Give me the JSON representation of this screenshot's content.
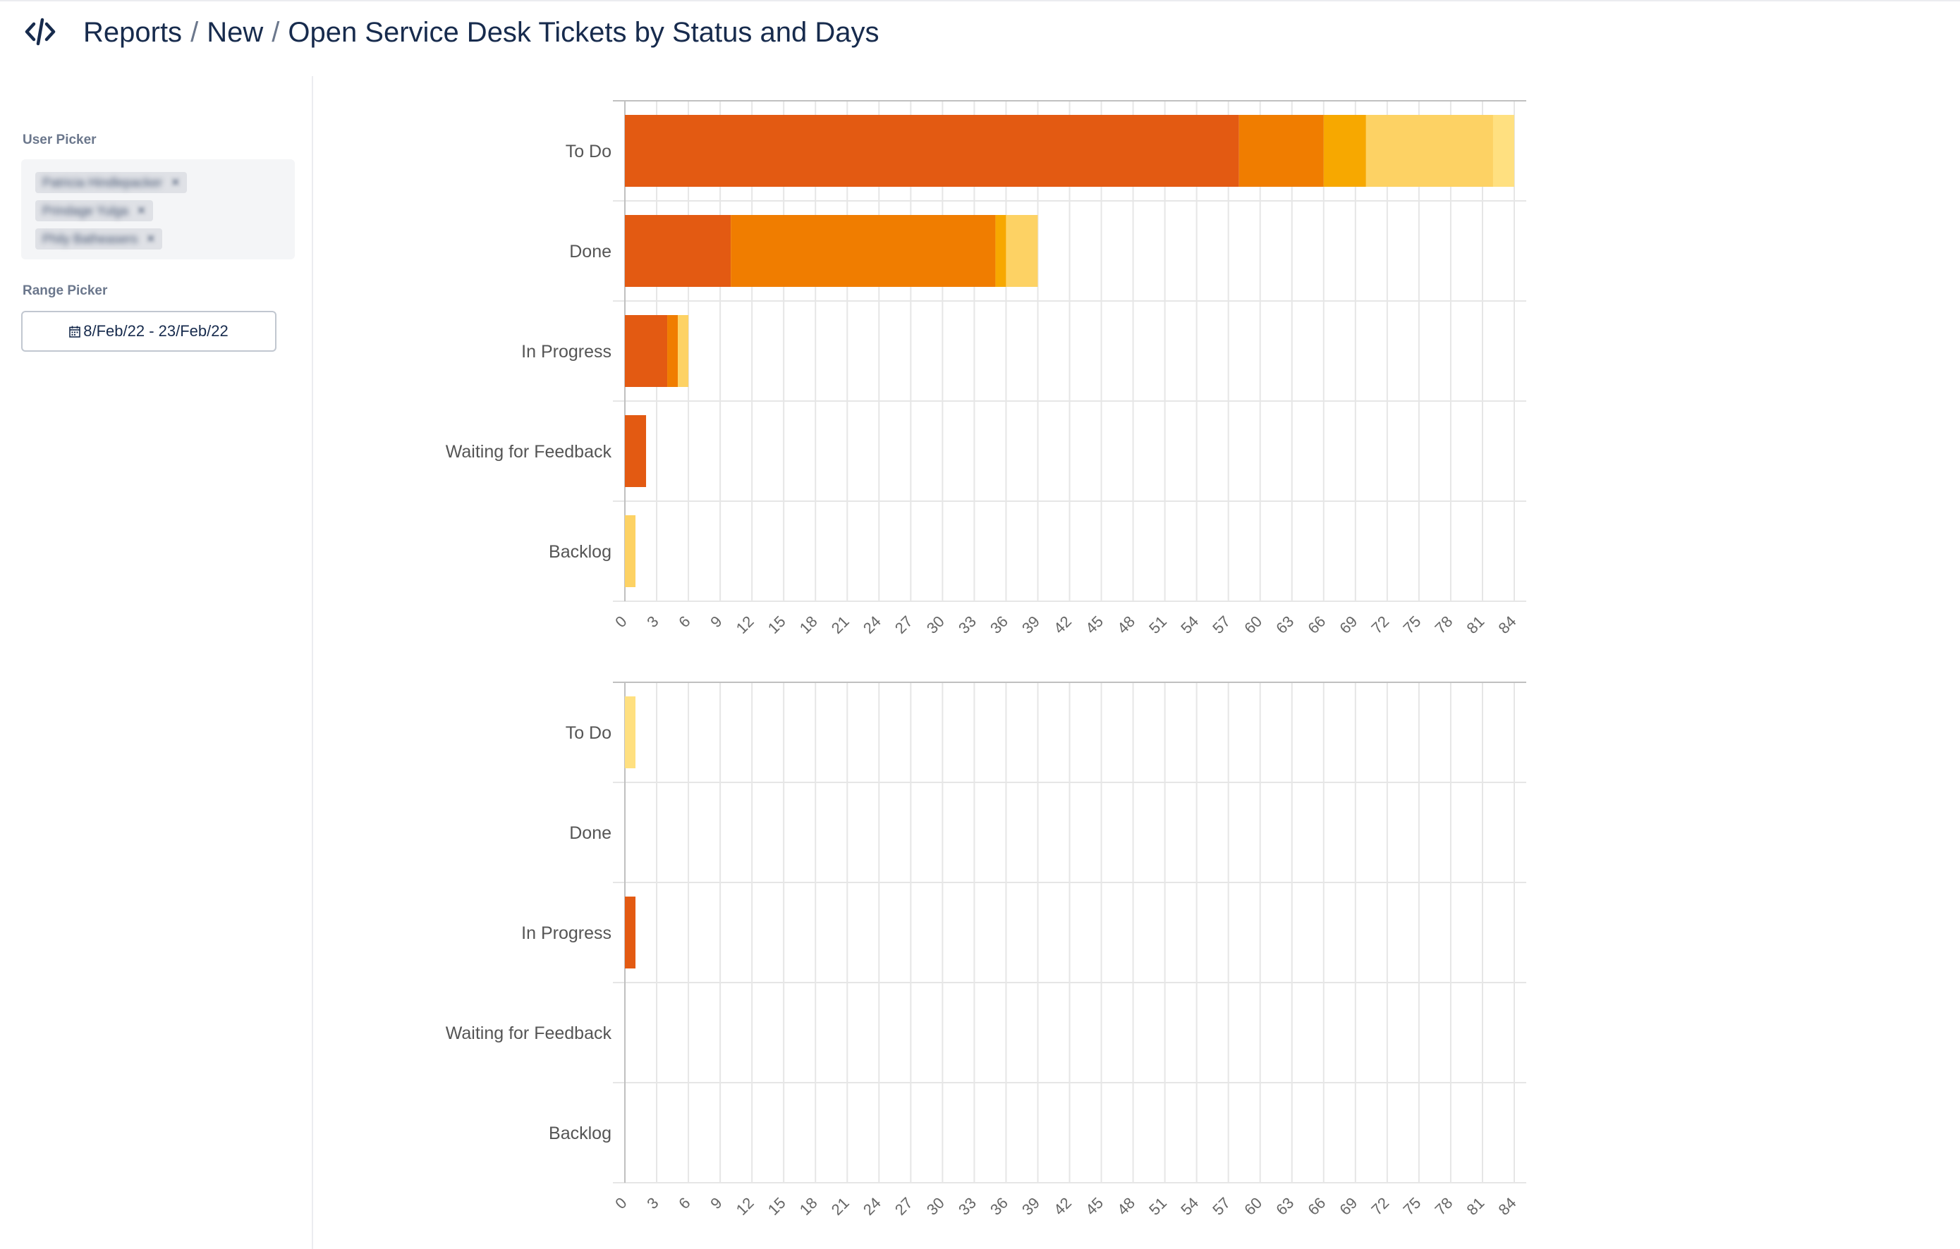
{
  "header": {
    "logo_icon": "code-brackets-icon",
    "breadcrumb": [
      "Reports",
      "New"
    ],
    "title": "Open Service Desk Tickets by Status and Days"
  },
  "sidebar": {
    "user_picker_label": "User Picker",
    "users": [
      "Patricia Hindlepacker",
      "Prindage Yulga",
      "Phily Batheasers"
    ],
    "range_picker_label": "Range Picker",
    "range_value": "8/Feb/22 - 23/Feb/22"
  },
  "colors": {
    "series": [
      "#e35a12",
      "#f07d00",
      "#f7a800",
      "#fdd264",
      "#ffe080"
    ],
    "grid": "#e6e6e6",
    "axis": "#c0c0c0"
  },
  "chart_data": [
    {
      "type": "bar",
      "orientation": "horizontal",
      "stacked": true,
      "categories": [
        "To Do",
        "Done",
        "In Progress",
        "Waiting for Feedback",
        "Backlog"
      ],
      "series": [
        {
          "values": [
            58,
            10,
            4,
            2,
            0
          ]
        },
        {
          "values": [
            8,
            25,
            1,
            0,
            0
          ]
        },
        {
          "values": [
            4,
            1,
            0,
            0,
            0
          ]
        },
        {
          "values": [
            12,
            3,
            1,
            0,
            1
          ]
        },
        {
          "values": [
            2,
            0,
            0,
            0,
            0
          ]
        }
      ],
      "xlim": [
        0,
        84
      ],
      "xticks": [
        0,
        3,
        6,
        9,
        12,
        15,
        18,
        21,
        24,
        27,
        30,
        33,
        36,
        39,
        42,
        45,
        48,
        51,
        54,
        57,
        60,
        63,
        66,
        69,
        72,
        75,
        78,
        81,
        84
      ],
      "grid": true
    },
    {
      "type": "bar",
      "orientation": "horizontal",
      "stacked": true,
      "categories": [
        "To Do",
        "Done",
        "In Progress",
        "Waiting for Feedback",
        "Backlog"
      ],
      "series": [
        {
          "values": [
            0,
            0,
            1,
            0,
            0
          ]
        },
        {
          "values": [
            0,
            0,
            0,
            0,
            0
          ]
        },
        {
          "values": [
            0,
            0,
            0,
            0,
            0
          ]
        },
        {
          "values": [
            0,
            0,
            0,
            0,
            0
          ]
        },
        {
          "values": [
            1,
            0,
            0,
            0,
            0
          ]
        }
      ],
      "xlim": [
        0,
        84
      ],
      "xticks": [
        0,
        3,
        6,
        9,
        12,
        15,
        18,
        21,
        24,
        27,
        30,
        33,
        36,
        39,
        42,
        45,
        48,
        51,
        54,
        57,
        60,
        63,
        66,
        69,
        72,
        75,
        78,
        81,
        84
      ],
      "grid": true
    }
  ]
}
